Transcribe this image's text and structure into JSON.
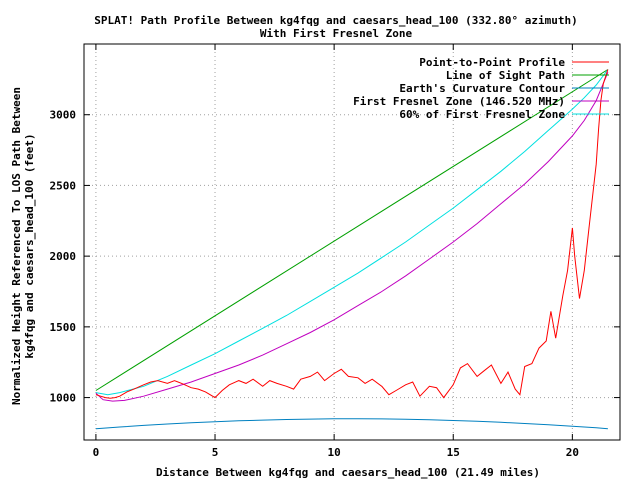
{
  "chart_data": {
    "type": "line",
    "title": "SPLAT! Path Profile Between kg4fqg and caesars_head_100 (332.80° azimuth)",
    "subtitle": "With First Fresnel Zone",
    "xlabel": "Distance Between kg4fqg and caesars_head_100 (21.49 miles)",
    "ylabel_line1": "Normalized Height Referenced To LOS Path Between",
    "ylabel_line2": "kg4fqg and caesars_head_100 (feet)",
    "xlim": [
      -0.5,
      22.0
    ],
    "ylim": [
      700,
      3500
    ],
    "xticks": [
      0,
      5,
      10,
      15,
      20
    ],
    "yticks": [
      1000,
      1500,
      2000,
      2500,
      3000
    ],
    "grid": true,
    "legend_position": "top-right",
    "series": [
      {
        "name": "Point-to-Point Profile",
        "color": "#ff0000",
        "x": [
          0,
          0.2,
          0.4,
          0.6,
          0.8,
          1.0,
          1.3,
          1.6,
          2.0,
          2.3,
          2.6,
          3.0,
          3.3,
          3.6,
          4.0,
          4.3,
          4.6,
          5.0,
          5.3,
          5.6,
          6.0,
          6.3,
          6.6,
          7.0,
          7.3,
          7.6,
          8.0,
          8.3,
          8.6,
          9.0,
          9.3,
          9.6,
          10.0,
          10.3,
          10.6,
          11.0,
          11.3,
          11.6,
          12.0,
          12.3,
          12.6,
          13.0,
          13.3,
          13.6,
          14.0,
          14.3,
          14.6,
          15.0,
          15.3,
          15.6,
          16.0,
          16.3,
          16.6,
          17.0,
          17.3,
          17.6,
          17.8,
          18.0,
          18.3,
          18.6,
          18.9,
          19.1,
          19.3,
          19.6,
          19.8,
          20.0,
          20.1,
          20.3,
          20.5,
          20.7,
          20.9,
          21.0,
          21.1,
          21.2,
          21.3,
          21.49
        ],
        "y": [
          1020,
          1010,
          1000,
          995,
          1000,
          1010,
          1040,
          1060,
          1090,
          1110,
          1120,
          1100,
          1120,
          1100,
          1070,
          1060,
          1040,
          1000,
          1050,
          1090,
          1120,
          1100,
          1130,
          1080,
          1120,
          1100,
          1080,
          1060,
          1130,
          1150,
          1180,
          1120,
          1170,
          1200,
          1150,
          1140,
          1100,
          1130,
          1080,
          1020,
          1050,
          1090,
          1110,
          1010,
          1080,
          1070,
          1000,
          1090,
          1210,
          1240,
          1150,
          1190,
          1230,
          1100,
          1180,
          1060,
          1020,
          1220,
          1240,
          1350,
          1400,
          1610,
          1420,
          1720,
          1900,
          2200,
          2000,
          1700,
          1900,
          2200,
          2500,
          2650,
          2900,
          3100,
          3220,
          3320
        ]
      },
      {
        "name": "Line of Sight Path",
        "color": "#00a000",
        "x": [
          0,
          21.49
        ],
        "y": [
          1050,
          3320
        ]
      },
      {
        "name": "Earth's Curvature Contour",
        "color": "#0080c0",
        "x": [
          0,
          1,
          2,
          3,
          4,
          5,
          6,
          7,
          8,
          9,
          10,
          11,
          12,
          13,
          14,
          15,
          16,
          17,
          18,
          19,
          20,
          21,
          21.49
        ],
        "y": [
          780,
          792,
          803,
          813,
          822,
          829,
          836,
          841,
          845,
          848,
          850,
          850,
          849,
          847,
          843,
          838,
          832,
          825,
          817,
          808,
          797,
          786,
          780
        ]
      },
      {
        "name": "First Fresnel Zone (146.520 MHz)",
        "color": "#c000c0",
        "x": [
          0,
          0.3,
          0.7,
          1.2,
          2,
          3,
          4,
          5,
          6,
          7,
          8,
          9,
          10,
          11,
          12,
          13,
          14,
          15,
          16,
          17,
          18,
          19,
          20,
          20.5,
          21,
          21.49
        ],
        "y": [
          1030,
          985,
          975,
          980,
          1010,
          1060,
          1110,
          1170,
          1230,
          1300,
          1380,
          1460,
          1550,
          1650,
          1750,
          1860,
          1980,
          2100,
          2230,
          2370,
          2510,
          2670,
          2850,
          2960,
          3100,
          3300
        ]
      },
      {
        "name": "60% of First Fresnel Zone",
        "color": "#00e0e0",
        "x": [
          0,
          0.5,
          1,
          2,
          3,
          4,
          5,
          6,
          7,
          8,
          9,
          10,
          11,
          12,
          13,
          14,
          15,
          16,
          17,
          18,
          19,
          20,
          20.5,
          21,
          21.49
        ],
        "y": [
          1035,
          1020,
          1035,
          1080,
          1150,
          1230,
          1310,
          1400,
          1490,
          1580,
          1680,
          1780,
          1880,
          1990,
          2100,
          2220,
          2340,
          2470,
          2600,
          2740,
          2890,
          3040,
          3120,
          3210,
          3320
        ]
      }
    ]
  }
}
